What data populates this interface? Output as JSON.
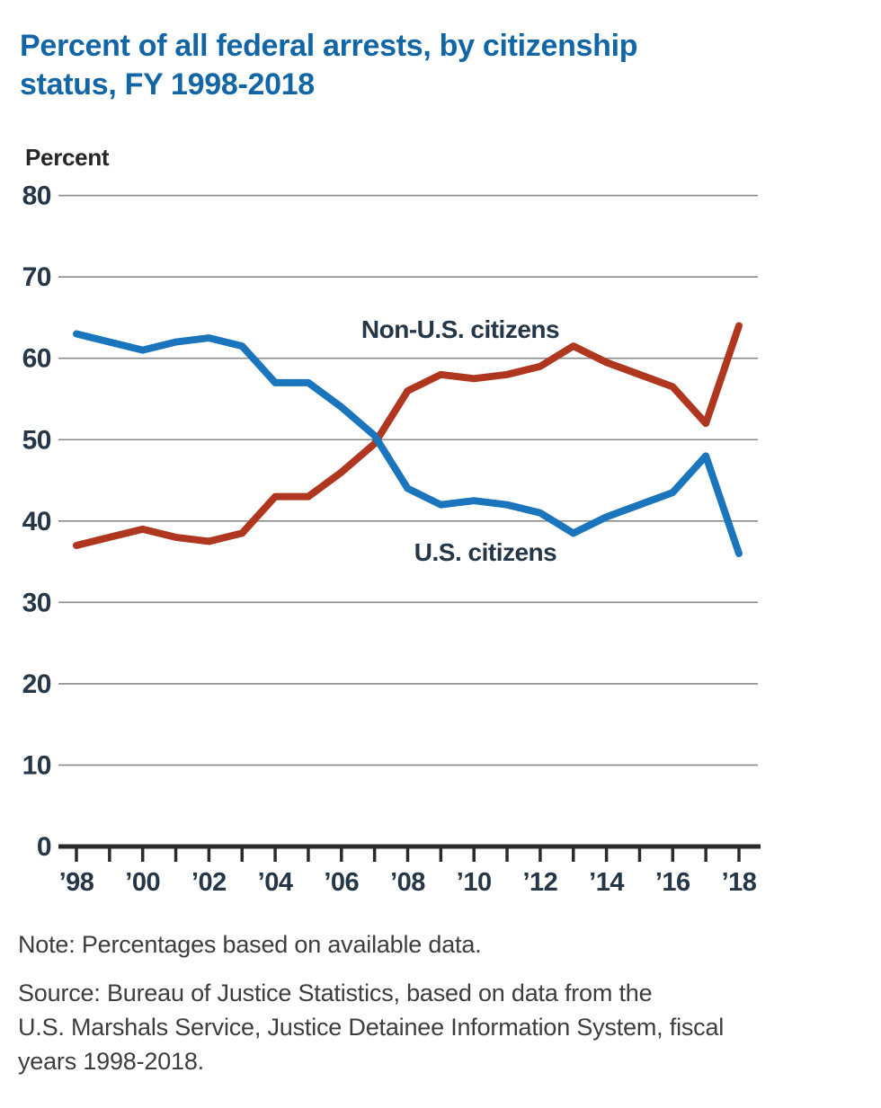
{
  "page": {
    "title_lines": [
      "Percent of all federal arrests, by citizenship",
      "status, FY 1998-2018"
    ],
    "note": "Note: Percentages based on available data.",
    "source_lines": [
      "Source: Bureau of Justice Statistics, based on data from the",
      "U.S. Marshals Service, Justice Detainee Information System, fiscal",
      "years 1998-2018."
    ]
  },
  "colors": {
    "title_blue": "#1366a6",
    "us_citizens_line": "#1b75bc",
    "non_us_citizens_line": "#b0371f",
    "gridline": "#8a8a8a",
    "axis": "#2b2a29",
    "axis_text": "#253646",
    "note_text": "#3d3d3d"
  },
  "chart_data": {
    "type": "line",
    "title": "Percent of all federal arrests, by citizenship status, FY 1998-2018",
    "xlabel": "",
    "ylabel": "Percent",
    "ylim": [
      0,
      80
    ],
    "ytick_interval": 10,
    "yticks": [
      0,
      10,
      20,
      30,
      40,
      50,
      60,
      70,
      80
    ],
    "grid": true,
    "legend_position": "inline-labels",
    "years": [
      1998,
      1999,
      2000,
      2001,
      2002,
      2003,
      2004,
      2005,
      2006,
      2007,
      2008,
      2009,
      2010,
      2011,
      2012,
      2013,
      2014,
      2015,
      2016,
      2017,
      2018
    ],
    "xticks": [
      {
        "year": 1998,
        "label": "’98"
      },
      {
        "year": 2000,
        "label": "’00"
      },
      {
        "year": 2002,
        "label": "’02"
      },
      {
        "year": 2004,
        "label": "’04"
      },
      {
        "year": 2006,
        "label": "’06"
      },
      {
        "year": 2008,
        "label": "’08"
      },
      {
        "year": 2010,
        "label": "’10"
      },
      {
        "year": 2012,
        "label": "’12"
      },
      {
        "year": 2014,
        "label": "’14"
      },
      {
        "year": 2016,
        "label": "’16"
      },
      {
        "year": 2018,
        "label": "’18"
      }
    ],
    "series": [
      {
        "name": "Non-U.S. citizens",
        "color": "#b0371f",
        "values": [
          37,
          38,
          39,
          38,
          37.5,
          38.5,
          43,
          43,
          46,
          49.5,
          56,
          58,
          57.5,
          58,
          59,
          61.5,
          59.5,
          58,
          56.5,
          52,
          64
        ]
      },
      {
        "name": "U.S. citizens",
        "color": "#1b75bc",
        "values": [
          63,
          62,
          61,
          62,
          62.5,
          61.5,
          57,
          57,
          54,
          50.5,
          44,
          42,
          42.5,
          42,
          41,
          38.5,
          40.5,
          42,
          43.5,
          48,
          36
        ]
      }
    ]
  }
}
